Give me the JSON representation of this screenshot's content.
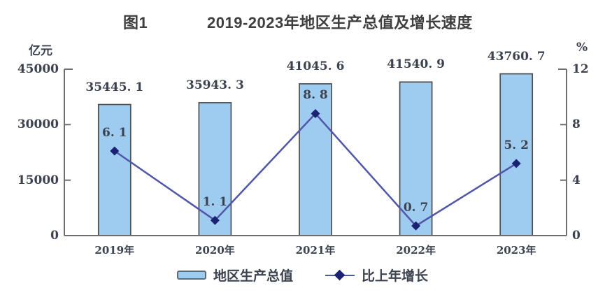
{
  "title": {
    "figure_label": "图1",
    "text": "2019-2023年地区生产总值及增长速度"
  },
  "colors": {
    "bar_fill": "#9ECBF0",
    "bar_border": "#4F4F4F",
    "line": "#5157A8",
    "marker": "#1B2173",
    "axis": "#6E6E6E",
    "text": "#3C434E",
    "title": "#3F3F3F"
  },
  "chart_data": {
    "type": "bar",
    "figure_label": "图1",
    "title": "2019-2023年地区生产总值及增长速度",
    "categories": [
      "2019年",
      "2020年",
      "2021年",
      "2022年",
      "2023年"
    ],
    "series": [
      {
        "name": "地区生产总值",
        "type": "bar",
        "axis": "left",
        "unit": "亿元",
        "values": [
          35445.1,
          35943.3,
          41045.6,
          41540.9,
          43760.7
        ],
        "labels": [
          "35445. 1",
          "35943. 3",
          "41045. 6",
          "41540. 9",
          "43760. 7"
        ]
      },
      {
        "name": "比上年增长",
        "type": "line",
        "axis": "right",
        "unit": "%",
        "values": [
          6.1,
          1.1,
          8.8,
          0.7,
          5.2
        ],
        "labels": [
          "6. 1",
          "1. 1",
          "8. 8",
          "0. 7",
          "5. 2"
        ]
      }
    ],
    "left_axis": {
      "unit": "亿元",
      "range": [
        0,
        45000
      ],
      "ticks": [
        0,
        15000,
        30000,
        45000
      ],
      "tick_labels": [
        "0",
        "15000",
        "30000",
        "45000"
      ]
    },
    "right_axis": {
      "unit": "%",
      "range": [
        0,
        12
      ],
      "ticks": [
        0,
        4,
        8,
        12
      ],
      "tick_labels": [
        "0",
        "4",
        "8",
        "12"
      ]
    },
    "grid": false,
    "legend_position": "bottom"
  }
}
